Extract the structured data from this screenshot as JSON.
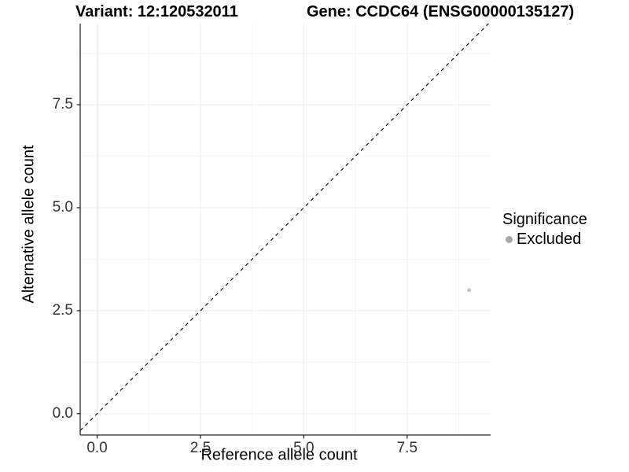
{
  "header": {
    "variant_title": "Variant: 12:120532011",
    "gene_title": "Gene: CCDC64 (ENSG00000135127)"
  },
  "legend": {
    "title": "Significance",
    "items": [
      {
        "label": "Excluded",
        "color": "#a6a6a6"
      }
    ]
  },
  "chart_data": {
    "type": "scatter",
    "title": "Variant: 12:120532011   Gene: CCDC64 (ENSG00000135127)",
    "xlabel": "Reference allele count",
    "ylabel": "Alternative allele count",
    "xlim": [
      -0.41,
      9.52
    ],
    "ylim": [
      -0.52,
      9.47
    ],
    "x_ticks": [
      0.0,
      2.5,
      5.0,
      7.5
    ],
    "y_ticks": [
      0.0,
      2.5,
      5.0,
      7.5
    ],
    "x_tick_labels": [
      "0.0",
      "2.5",
      "5.0",
      "7.5"
    ],
    "y_tick_labels": [
      "0.0",
      "2.5",
      "5.0",
      "7.5"
    ],
    "x_minor_ticks": [
      1.25,
      3.75,
      6.25,
      8.75
    ],
    "y_minor_ticks": [
      1.25,
      3.75,
      6.25,
      8.75
    ],
    "grid": true,
    "legend_position": "right",
    "reference_line": {
      "type": "identity",
      "style": "dashed",
      "color": "#111111"
    },
    "series": [
      {
        "name": "Excluded",
        "color": "#c8c8c8",
        "points": [
          {
            "x": 9,
            "y": 3
          }
        ]
      }
    ],
    "colors": {
      "axis_line": "#262626",
      "tick_mark": "#262626",
      "grid_major": "#ebebeb",
      "grid_minor": "#f4f4f4",
      "tick_text": "#333333"
    }
  }
}
